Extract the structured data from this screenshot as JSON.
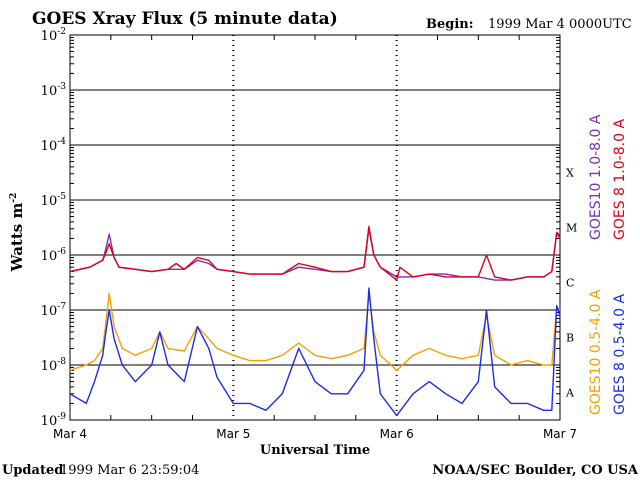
{
  "header": {
    "title": "GOES Xray Flux (5 minute data)",
    "begin_label": "Begin:",
    "begin_value": "1999 Mar 4 0000UTC"
  },
  "footer": {
    "updated_label": "Updated",
    "updated_value": "1999 Mar  6 23:59:04",
    "credit": "NOAA/SEC Boulder, CO USA"
  },
  "chart_data": {
    "type": "line",
    "title": "GOES Xray Flux (5 minute data)",
    "xlabel": "Universal Time",
    "ylabel": "Watts m",
    "ylabel_sup": "-2",
    "yscale": "log",
    "ylim": [
      1e-09,
      0.01
    ],
    "y_ticks": [
      {
        "exp": -2,
        "label": "10",
        "sup": "-2"
      },
      {
        "exp": -3,
        "label": "10",
        "sup": "-3"
      },
      {
        "exp": -4,
        "label": "10",
        "sup": "-4"
      },
      {
        "exp": -5,
        "label": "10",
        "sup": "-5"
      },
      {
        "exp": -6,
        "label": "10",
        "sup": "-6"
      },
      {
        "exp": -7,
        "label": "10",
        "sup": "-7"
      },
      {
        "exp": -8,
        "label": "10",
        "sup": "-8"
      },
      {
        "exp": -9,
        "label": "10",
        "sup": "-9"
      }
    ],
    "xlim": [
      0,
      3
    ],
    "x_ticks": [
      {
        "value": 0,
        "label": "Mar 4"
      },
      {
        "value": 1,
        "label": "Mar 5"
      },
      {
        "value": 2,
        "label": "Mar 6"
      },
      {
        "value": 3,
        "label": "Mar 7"
      }
    ],
    "flare_classes": [
      {
        "label": "X",
        "exp": -4
      },
      {
        "label": "M",
        "exp": -5
      },
      {
        "label": "C",
        "exp": -6
      },
      {
        "label": "B",
        "exp": -7
      },
      {
        "label": "A",
        "exp": -8
      }
    ],
    "grid_horizontal": true,
    "series": [
      {
        "name": "GOES10 1.0-8.0 A",
        "color": "#7b2fb5",
        "x": [
          0,
          0.12,
          0.2,
          0.22,
          0.24,
          0.27,
          0.3,
          0.4,
          0.5,
          0.6,
          0.7,
          0.78,
          0.85,
          0.9,
          1.0,
          1.1,
          1.2,
          1.3,
          1.4,
          1.5,
          1.6,
          1.7,
          1.8,
          1.83,
          1.86,
          1.9,
          2.0,
          2.1,
          2.2,
          2.3,
          2.4,
          2.5,
          2.6,
          2.7,
          2.8,
          2.9,
          2.95,
          2.98,
          3.0
        ],
        "y": [
          5e-07,
          6e-07,
          8e-07,
          1.3e-06,
          2.4e-06,
          9e-07,
          6e-07,
          5.5e-07,
          5e-07,
          5.5e-07,
          5.5e-07,
          8e-07,
          7e-07,
          5.5e-07,
          5e-07,
          4.5e-07,
          4.5e-07,
          4.5e-07,
          6e-07,
          5.5e-07,
          5e-07,
          5e-07,
          6e-07,
          3e-06,
          1e-06,
          6e-07,
          4e-07,
          4e-07,
          4.5e-07,
          4.5e-07,
          4e-07,
          4e-07,
          3.5e-07,
          3.5e-07,
          4e-07,
          4e-07,
          5e-07,
          2.5e-06,
          2e-06
        ]
      },
      {
        "name": "GOES 8 1.0-8.0 A",
        "color": "#e0001b",
        "x": [
          0,
          0.12,
          0.2,
          0.22,
          0.24,
          0.27,
          0.3,
          0.4,
          0.5,
          0.6,
          0.65,
          0.7,
          0.78,
          0.85,
          0.9,
          1.0,
          1.1,
          1.2,
          1.3,
          1.4,
          1.5,
          1.6,
          1.7,
          1.8,
          1.83,
          1.86,
          1.9,
          2.0,
          2.02,
          2.1,
          2.2,
          2.3,
          2.4,
          2.5,
          2.55,
          2.6,
          2.7,
          2.8,
          2.9,
          2.95,
          2.98,
          3.0
        ],
        "y": [
          5e-07,
          6e-07,
          8e-07,
          1.1e-06,
          1.6e-06,
          9e-07,
          6e-07,
          5.5e-07,
          5e-07,
          5.5e-07,
          7e-07,
          5.5e-07,
          9e-07,
          8e-07,
          5.5e-07,
          5e-07,
          4.5e-07,
          4.5e-07,
          4.5e-07,
          7e-07,
          6e-07,
          5e-07,
          5e-07,
          6e-07,
          3.3e-06,
          1e-06,
          6e-07,
          3.5e-07,
          6e-07,
          4e-07,
          4.5e-07,
          4e-07,
          4e-07,
          4e-07,
          1e-06,
          4e-07,
          3.5e-07,
          4e-07,
          4e-07,
          5e-07,
          2.6e-06,
          2.2e-06
        ]
      },
      {
        "name": "GOES10 0.5-4.0 A",
        "color": "#f5a000",
        "x": [
          0,
          0.1,
          0.15,
          0.2,
          0.22,
          0.24,
          0.27,
          0.32,
          0.4,
          0.5,
          0.55,
          0.6,
          0.7,
          0.78,
          0.85,
          0.9,
          1.0,
          1.1,
          1.2,
          1.3,
          1.4,
          1.5,
          1.6,
          1.7,
          1.8,
          1.83,
          1.86,
          1.9,
          2.0,
          2.1,
          2.2,
          2.3,
          2.4,
          2.5,
          2.55,
          2.6,
          2.7,
          2.8,
          2.9,
          2.95,
          2.98,
          3.0
        ],
        "y": [
          8e-09,
          1e-08,
          1.2e-08,
          2e-08,
          6e-08,
          2e-07,
          5e-08,
          2e-08,
          1.5e-08,
          2e-08,
          4e-08,
          2e-08,
          1.8e-08,
          5e-08,
          3e-08,
          2e-08,
          1.5e-08,
          1.2e-08,
          1.2e-08,
          1.5e-08,
          2.5e-08,
          1.5e-08,
          1.3e-08,
          1.5e-08,
          2e-08,
          2e-07,
          4e-08,
          1.5e-08,
          8e-09,
          1.5e-08,
          2e-08,
          1.5e-08,
          1.3e-08,
          1.5e-08,
          8e-08,
          1.5e-08,
          1e-08,
          1.2e-08,
          1e-08,
          1e-08,
          1.1e-07,
          1e-07
        ]
      },
      {
        "name": "GOES 8 0.5-4.0 A",
        "color": "#1a2de8",
        "x": [
          0,
          0.1,
          0.15,
          0.2,
          0.22,
          0.24,
          0.27,
          0.32,
          0.4,
          0.5,
          0.55,
          0.6,
          0.7,
          0.78,
          0.85,
          0.9,
          1.0,
          1.1,
          1.2,
          1.3,
          1.4,
          1.5,
          1.6,
          1.7,
          1.8,
          1.83,
          1.86,
          1.9,
          2.0,
          2.1,
          2.2,
          2.3,
          2.4,
          2.5,
          2.55,
          2.6,
          2.7,
          2.8,
          2.9,
          2.95,
          2.98,
          3.0
        ],
        "y": [
          3e-09,
          2e-09,
          5e-09,
          1.5e-08,
          4e-08,
          1e-07,
          3e-08,
          1e-08,
          5e-09,
          1e-08,
          4e-08,
          1e-08,
          5e-09,
          5e-08,
          2e-08,
          6e-09,
          2e-09,
          2e-09,
          1.5e-09,
          3e-09,
          2e-08,
          5e-09,
          3e-09,
          3e-09,
          8e-09,
          2.5e-07,
          3e-08,
          3e-09,
          1.2e-09,
          3e-09,
          5e-09,
          3e-09,
          2e-09,
          5e-09,
          1e-07,
          4e-09,
          2e-09,
          2e-09,
          1.5e-09,
          1.5e-09,
          1.2e-07,
          8e-08
        ]
      }
    ]
  }
}
